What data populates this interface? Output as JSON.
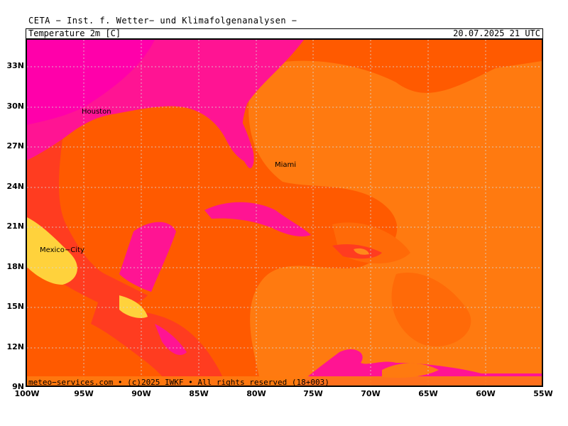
{
  "header": {
    "title": "CETA − Inst. f. Wetter− und Klimafolgenanalysen −",
    "variable": "Temperature 2m [C]",
    "datetime": "20.07.2025 21 UTC"
  },
  "footer": {
    "credit": "meteo−services.com • (c)2025 IWKF • All rights reserved (18+003)"
  },
  "axes": {
    "lat_labels": [
      "33N",
      "30N",
      "27N",
      "24N",
      "21N",
      "18N",
      "15N",
      "12N",
      "9N"
    ],
    "lon_labels": [
      "100W",
      "95W",
      "90W",
      "85W",
      "80W",
      "75W",
      "70W",
      "65W",
      "60W",
      "55W"
    ]
  },
  "cities": [
    {
      "name": "Houston"
    },
    {
      "name": "Miami"
    },
    {
      "name": "Mexico−City"
    }
  ],
  "colors": {
    "warm_base": "#ff5a00",
    "land_hot": "#ff1493",
    "land_very_hot": "#ff00aa",
    "sea_cooler": "#ff7a10",
    "highland_cool": "#ffd23c",
    "coast": "#3a2a2a"
  }
}
